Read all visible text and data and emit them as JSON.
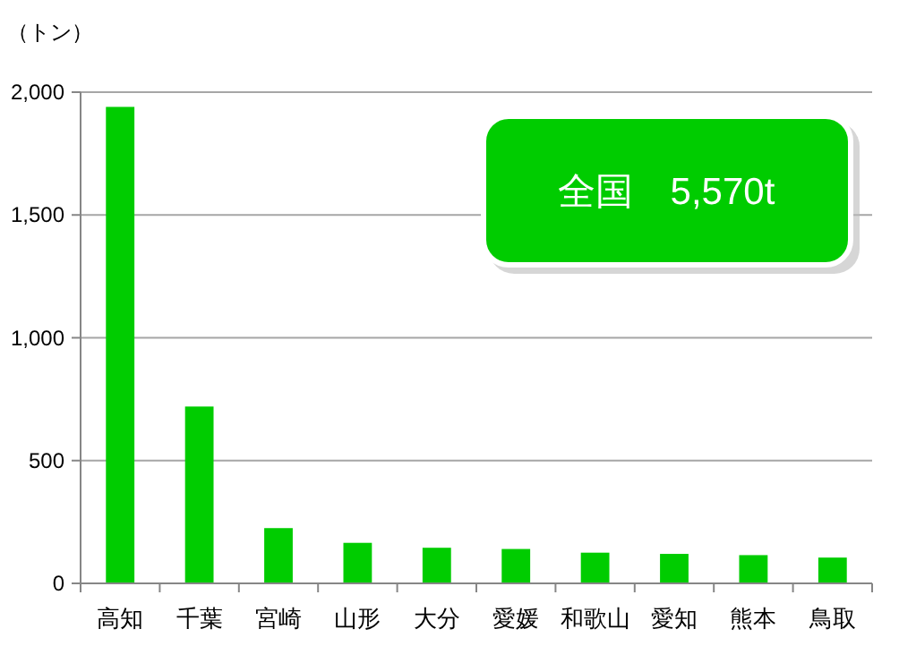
{
  "chart_data": {
    "type": "bar",
    "ylabel": "（トン）",
    "categories": [
      "高知",
      "千葉",
      "宮崎",
      "山形",
      "大分",
      "愛媛",
      "和歌山",
      "愛知",
      "熊本",
      "鳥取"
    ],
    "values": [
      1940,
      720,
      225,
      165,
      145,
      140,
      125,
      120,
      115,
      105
    ],
    "color": "#00cc00",
    "ylim": [
      0,
      2000
    ],
    "yticks": [
      {
        "value": 0,
        "label": "0"
      },
      {
        "value": 500,
        "label": "500"
      },
      {
        "value": 1000,
        "label": "1,000"
      },
      {
        "value": 1500,
        "label": "1,500"
      },
      {
        "value": 2000,
        "label": "2,000"
      }
    ],
    "grid": "y",
    "annotations": [
      "全国　5,570t"
    ]
  }
}
